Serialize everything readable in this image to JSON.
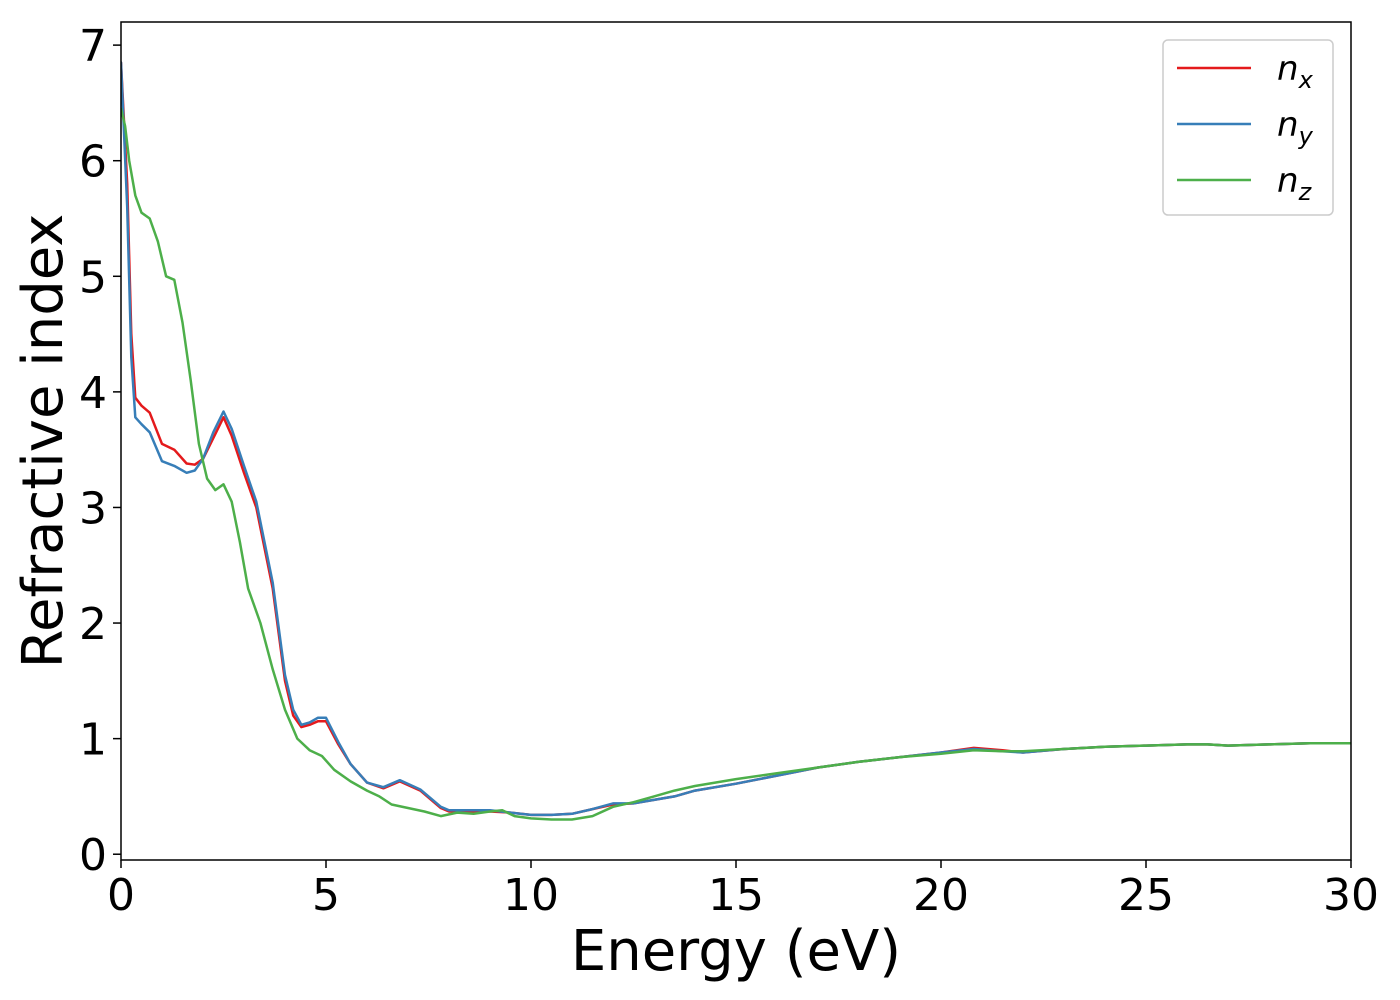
{
  "chart_data": {
    "type": "line",
    "xlabel": "Energy (eV)",
    "ylabel": "Refractive index",
    "xlim": [
      0,
      30
    ],
    "ylim": [
      -0.05,
      7.2
    ],
    "xticks": [
      0,
      5,
      10,
      15,
      20,
      25,
      30
    ],
    "yticks": [
      0,
      1,
      2,
      3,
      4,
      5,
      6,
      7
    ],
    "grid": false,
    "legend_position": "top-right",
    "series": [
      {
        "name": "n",
        "subscript": "x",
        "color": "#e41a1c",
        "x": [
          0,
          0.15,
          0.25,
          0.35,
          0.5,
          0.7,
          1.0,
          1.3,
          1.6,
          1.8,
          2.0,
          2.25,
          2.5,
          2.7,
          3.0,
          3.3,
          3.7,
          4.0,
          4.2,
          4.4,
          4.6,
          4.8,
          5.0,
          5.3,
          5.6,
          6.0,
          6.4,
          6.8,
          7.3,
          7.8,
          8.0,
          8.5,
          9.0,
          9.5,
          10.0,
          10.5,
          11.0,
          11.5,
          12.0,
          12.5,
          13.0,
          13.5,
          14.0,
          15.0,
          16.0,
          17.0,
          18.0,
          19.0,
          20.0,
          20.8,
          21.5,
          22.0,
          23.0,
          24.0,
          25.0,
          26.0,
          26.5,
          27.0,
          28.0,
          29.0,
          30.0
        ],
        "y": [
          6.85,
          5.8,
          4.5,
          3.95,
          3.88,
          3.82,
          3.55,
          3.5,
          3.38,
          3.37,
          3.42,
          3.6,
          3.78,
          3.62,
          3.3,
          3.0,
          2.3,
          1.5,
          1.2,
          1.1,
          1.12,
          1.15,
          1.15,
          0.95,
          0.78,
          0.62,
          0.57,
          0.63,
          0.55,
          0.4,
          0.37,
          0.37,
          0.37,
          0.36,
          0.34,
          0.34,
          0.35,
          0.39,
          0.43,
          0.44,
          0.47,
          0.5,
          0.55,
          0.61,
          0.68,
          0.75,
          0.8,
          0.84,
          0.88,
          0.92,
          0.9,
          0.88,
          0.91,
          0.93,
          0.94,
          0.95,
          0.95,
          0.94,
          0.95,
          0.96,
          0.96
        ]
      },
      {
        "name": "n",
        "subscript": "y",
        "color": "#377eb8",
        "x": [
          0,
          0.15,
          0.25,
          0.35,
          0.5,
          0.7,
          1.0,
          1.3,
          1.6,
          1.8,
          2.0,
          2.25,
          2.5,
          2.7,
          3.0,
          3.3,
          3.7,
          4.0,
          4.2,
          4.4,
          4.6,
          4.8,
          5.0,
          5.3,
          5.6,
          6.0,
          6.4,
          6.8,
          7.3,
          7.8,
          8.0,
          8.5,
          9.0,
          9.5,
          10.0,
          10.5,
          11.0,
          11.5,
          12.0,
          12.5,
          13.0,
          13.5,
          14.0,
          15.0,
          16.0,
          17.0,
          18.0,
          19.0,
          20.0,
          20.8,
          21.5,
          22.0,
          23.0,
          24.0,
          25.0,
          26.0,
          26.5,
          27.0,
          28.0,
          29.0,
          30.0
        ],
        "y": [
          6.85,
          5.6,
          4.3,
          3.78,
          3.72,
          3.65,
          3.4,
          3.36,
          3.3,
          3.32,
          3.42,
          3.65,
          3.83,
          3.68,
          3.36,
          3.05,
          2.35,
          1.55,
          1.25,
          1.12,
          1.14,
          1.18,
          1.18,
          0.97,
          0.78,
          0.62,
          0.58,
          0.64,
          0.56,
          0.41,
          0.38,
          0.38,
          0.38,
          0.36,
          0.34,
          0.34,
          0.35,
          0.39,
          0.44,
          0.44,
          0.47,
          0.5,
          0.55,
          0.61,
          0.68,
          0.75,
          0.8,
          0.84,
          0.88,
          0.91,
          0.89,
          0.88,
          0.91,
          0.93,
          0.94,
          0.95,
          0.95,
          0.94,
          0.95,
          0.96,
          0.96
        ]
      },
      {
        "name": "n",
        "subscript": "z",
        "color": "#4daf4a",
        "x": [
          0,
          0.1,
          0.2,
          0.35,
          0.5,
          0.7,
          0.9,
          1.1,
          1.3,
          1.5,
          1.7,
          1.9,
          2.1,
          2.3,
          2.5,
          2.7,
          2.9,
          3.1,
          3.4,
          3.7,
          4.0,
          4.3,
          4.6,
          4.9,
          5.2,
          5.6,
          6.0,
          6.3,
          6.6,
          7.0,
          7.4,
          7.8,
          8.2,
          8.6,
          9.0,
          9.3,
          9.6,
          10.0,
          10.5,
          11.0,
          11.5,
          12.0,
          12.5,
          13.0,
          13.5,
          14.0,
          15.0,
          16.0,
          17.0,
          18.0,
          19.0,
          20.0,
          20.8,
          21.5,
          22.0,
          23.0,
          24.0,
          25.0,
          26.0,
          26.5,
          27.0,
          28.0,
          29.0,
          30.0
        ],
        "y": [
          6.45,
          6.3,
          6.0,
          5.7,
          5.55,
          5.5,
          5.3,
          5.0,
          4.97,
          4.6,
          4.1,
          3.55,
          3.25,
          3.15,
          3.2,
          3.05,
          2.7,
          2.3,
          2.0,
          1.6,
          1.25,
          1.0,
          0.9,
          0.85,
          0.73,
          0.63,
          0.55,
          0.5,
          0.43,
          0.4,
          0.37,
          0.33,
          0.36,
          0.35,
          0.37,
          0.38,
          0.33,
          0.31,
          0.3,
          0.3,
          0.33,
          0.41,
          0.45,
          0.5,
          0.55,
          0.59,
          0.65,
          0.7,
          0.75,
          0.8,
          0.84,
          0.87,
          0.9,
          0.89,
          0.89,
          0.91,
          0.93,
          0.94,
          0.95,
          0.95,
          0.94,
          0.95,
          0.96,
          0.96
        ]
      }
    ]
  }
}
